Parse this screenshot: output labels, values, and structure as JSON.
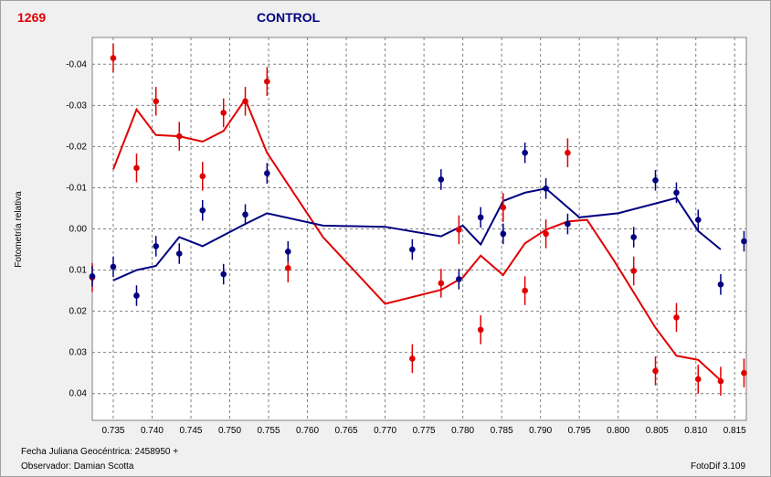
{
  "header": {
    "object_id": "1269",
    "title": "CONTROL"
  },
  "footer": {
    "jd_label": "Fecha Juliana Geocéntrica: 2458950 +",
    "observer_label": "Observador: Damian Scotta",
    "software_label": "FotoDif 3.109"
  },
  "colors": {
    "target": "#e00000",
    "control": "#000080",
    "grid": "#808080"
  },
  "chart_data": {
    "type": "scatter",
    "title": "CONTROL",
    "xlabel": "Fecha Juliana Geocéntrica: 2458950 +",
    "ylabel": "Fotometría relativa",
    "xlim": [
      0.7323,
      0.8165
    ],
    "ylim": [
      -0.0465,
      0.0465
    ],
    "y_inverted": true,
    "grid": true,
    "x_ticks": [
      0.735,
      0.74,
      0.745,
      0.75,
      0.755,
      0.76,
      0.765,
      0.77,
      0.775,
      0.78,
      0.785,
      0.79,
      0.795,
      0.8,
      0.805,
      0.81,
      0.815
    ],
    "x_tick_labels": [
      "0.735",
      "0.740",
      "0.745",
      "0.750",
      "0.755",
      "0.760",
      "0.765",
      "0.770",
      "0.775",
      "0.780",
      "0.785",
      "0.790",
      "0.795",
      "0.800",
      "0.805",
      "0.810",
      "0.815"
    ],
    "y_ticks": [
      -0.04,
      -0.03,
      -0.02,
      -0.01,
      0.0,
      0.01,
      0.02,
      0.03,
      0.04
    ],
    "y_tick_labels": [
      "-0.04",
      "-0.03",
      "-0.02",
      "-0.01",
      "0.00",
      "0.01",
      "0.02",
      "0.03",
      "0.04"
    ],
    "series": [
      {
        "color": "#e00000",
        "error": 0.0035,
        "points": [
          [
            0.7323,
            0.0118
          ],
          [
            0.735,
            -0.0415
          ],
          [
            0.738,
            -0.0148
          ],
          [
            0.7405,
            -0.031
          ],
          [
            0.7435,
            -0.0225
          ],
          [
            0.7465,
            -0.0128
          ],
          [
            0.7492,
            -0.0282
          ],
          [
            0.752,
            -0.031
          ],
          [
            0.7548,
            -0.0358
          ],
          [
            0.7575,
            0.0095
          ],
          [
            0.7735,
            0.0315
          ],
          [
            0.7772,
            0.0132
          ],
          [
            0.7795,
            0.0002
          ],
          [
            0.7823,
            0.0245
          ],
          [
            0.7852,
            -0.0052
          ],
          [
            0.788,
            0.015
          ],
          [
            0.7907,
            0.0012
          ],
          [
            0.7935,
            -0.0185
          ],
          [
            0.802,
            0.0102
          ],
          [
            0.8048,
            0.0345
          ],
          [
            0.8075,
            0.0215
          ],
          [
            0.8103,
            0.0365
          ],
          [
            0.8132,
            0.037
          ],
          [
            0.8162,
            0.035
          ]
        ],
        "line": [
          [
            0.735,
            -0.0145
          ],
          [
            0.738,
            -0.029
          ],
          [
            0.7405,
            -0.0228
          ],
          [
            0.7435,
            -0.0225
          ],
          [
            0.7465,
            -0.0212
          ],
          [
            0.7492,
            -0.0238
          ],
          [
            0.752,
            -0.0315
          ],
          [
            0.7548,
            -0.0185
          ],
          [
            0.762,
            0.002
          ],
          [
            0.77,
            0.0182
          ],
          [
            0.7772,
            0.0148
          ],
          [
            0.78,
            0.0118
          ],
          [
            0.7823,
            0.0065
          ],
          [
            0.7852,
            0.0112
          ],
          [
            0.788,
            0.0035
          ],
          [
            0.7907,
            0.0002
          ],
          [
            0.7935,
            -0.0018
          ],
          [
            0.796,
            -0.0022
          ],
          [
            0.7995,
            0.0078
          ],
          [
            0.8048,
            0.024
          ],
          [
            0.8075,
            0.0308
          ],
          [
            0.8103,
            0.0318
          ],
          [
            0.8132,
            0.0368
          ]
        ]
      },
      {
        "color": "#000080",
        "error": 0.0025,
        "points": [
          [
            0.7323,
            0.0115
          ],
          [
            0.735,
            0.0092
          ],
          [
            0.738,
            0.0162
          ],
          [
            0.7405,
            0.0042
          ],
          [
            0.7435,
            0.006
          ],
          [
            0.7465,
            -0.0045
          ],
          [
            0.7492,
            0.011
          ],
          [
            0.752,
            -0.0035
          ],
          [
            0.7548,
            -0.0135
          ],
          [
            0.7575,
            0.0055
          ],
          [
            0.7735,
            0.005
          ],
          [
            0.7772,
            -0.012
          ],
          [
            0.7795,
            0.0122
          ],
          [
            0.7823,
            -0.0028
          ],
          [
            0.7852,
            0.0012
          ],
          [
            0.788,
            -0.0185
          ],
          [
            0.7907,
            -0.0098
          ],
          [
            0.7935,
            -0.0012
          ],
          [
            0.802,
            0.002
          ],
          [
            0.8048,
            -0.0118
          ],
          [
            0.8075,
            -0.0088
          ],
          [
            0.8103,
            -0.0022
          ],
          [
            0.8132,
            0.0135
          ],
          [
            0.8162,
            0.003
          ]
        ],
        "line": [
          [
            0.735,
            0.0125
          ],
          [
            0.738,
            0.01
          ],
          [
            0.7405,
            0.009
          ],
          [
            0.7435,
            0.002
          ],
          [
            0.7465,
            0.0042
          ],
          [
            0.752,
            -0.0012
          ],
          [
            0.7548,
            -0.0038
          ],
          [
            0.762,
            -0.0008
          ],
          [
            0.77,
            -0.0005
          ],
          [
            0.7772,
            0.0018
          ],
          [
            0.78,
            -0.0008
          ],
          [
            0.7823,
            0.0038
          ],
          [
            0.7852,
            -0.0068
          ],
          [
            0.788,
            -0.0088
          ],
          [
            0.7907,
            -0.0098
          ],
          [
            0.795,
            -0.0028
          ],
          [
            0.8,
            -0.0038
          ],
          [
            0.8075,
            -0.0075
          ],
          [
            0.8103,
            0.0005
          ],
          [
            0.8132,
            0.005
          ]
        ]
      }
    ]
  }
}
